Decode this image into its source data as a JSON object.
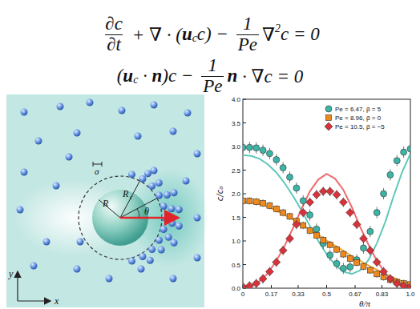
{
  "equations": [
    [
      {
        "frac": [
          "∂c",
          "∂t"
        ]
      },
      {
        "text": " + ∇ · ("
      },
      {
        "bold": "u"
      },
      {
        "sub": "c"
      },
      {
        "text": "c) − "
      },
      {
        "frac": [
          "1",
          "Pe"
        ]
      },
      {
        "text": "∇"
      },
      {
        "sup": "2"
      },
      {
        "text": "c = 0"
      }
    ],
    [
      {
        "text": "("
      },
      {
        "bold": "u"
      },
      {
        "sub": "c"
      },
      {
        "text": " · "
      },
      {
        "bold": "n"
      },
      {
        "text": ")c − "
      },
      {
        "frac": [
          "1",
          "Pe"
        ]
      },
      {
        "bold": "n"
      },
      {
        "text": " · ∇c = 0"
      }
    ]
  ],
  "diagram": {
    "labels": {
      "sigma": "σ",
      "radius": "R",
      "capture_radius": "R",
      "capture_sub": "c",
      "angle": "θ",
      "y_axis": "y",
      "x_axis": "x"
    }
  },
  "chart_data": {
    "type": "scatter",
    "x_label": "θ/π",
    "y_label": "c/c₀",
    "xlim": [
      0,
      1
    ],
    "ylim": [
      0,
      4
    ],
    "xticks": [
      0,
      0.17,
      0.33,
      0.5,
      0.67,
      0.83,
      {
        "value": 1,
        "label": "1.0"
      }
    ],
    "yticks": [
      {
        "value": 0,
        "label": "0.0"
      },
      0.5,
      {
        "value": 1,
        "label": "1.0"
      },
      1.5,
      {
        "value": 2,
        "label": "2.0"
      },
      2.5,
      {
        "value": 3,
        "label": "3.0"
      },
      3.5,
      {
        "value": 4,
        "label": "4.0"
      }
    ],
    "grid": false,
    "legend": "upper right",
    "series": [
      {
        "name": "Pe = 6.47, β = 5",
        "type": "scatter",
        "marker": "circle",
        "color": "#3db5a6",
        "x": [
          0,
          0.04,
          0.08,
          0.12,
          0.16,
          0.2,
          0.24,
          0.28,
          0.32,
          0.36,
          0.4,
          0.44,
          0.48,
          0.52,
          0.56,
          0.6,
          0.64,
          0.68,
          0.72,
          0.76,
          0.8,
          0.84,
          0.88,
          0.92,
          0.96,
          1
        ],
        "values": [
          2.98,
          2.98,
          2.97,
          2.92,
          2.85,
          2.72,
          2.55,
          2.35,
          2.12,
          1.85,
          1.55,
          1.25,
          0.95,
          0.7,
          0.52,
          0.42,
          0.45,
          0.6,
          0.85,
          1.2,
          1.6,
          2.0,
          2.4,
          2.7,
          2.88,
          2.95
        ],
        "errors": [
          0.12,
          0.12,
          0.12,
          0.12,
          0.12,
          0.12,
          0.12,
          0.12,
          0.12,
          0.12,
          0.12,
          0.12,
          0.12,
          0.12,
          0.12,
          0.12,
          0.12,
          0.12,
          0.12,
          0.12,
          0.12,
          0.12,
          0.12,
          0.12,
          0.12,
          0.12
        ]
      },
      {
        "name": "Pe = 8.96, β = 0",
        "type": "scatter",
        "marker": "square",
        "color": "#f0891c",
        "x": [
          0,
          0.04,
          0.08,
          0.12,
          0.16,
          0.2,
          0.24,
          0.28,
          0.32,
          0.36,
          0.4,
          0.44,
          0.48,
          0.52,
          0.56,
          0.6,
          0.64,
          0.68,
          0.72,
          0.76,
          0.8,
          0.84,
          0.88,
          0.92,
          0.96,
          1
        ],
        "values": [
          1.85,
          1.85,
          1.83,
          1.8,
          1.75,
          1.68,
          1.6,
          1.52,
          1.42,
          1.33,
          1.22,
          1.12,
          1.02,
          0.92,
          0.82,
          0.72,
          0.63,
          0.54,
          0.46,
          0.38,
          0.3,
          0.24,
          0.18,
          0.13,
          0.1,
          0.08
        ],
        "errors": [
          0.08,
          0.08,
          0.08,
          0.08,
          0.08,
          0.08,
          0.08,
          0.08,
          0.08,
          0.08,
          0.08,
          0.08,
          0.08,
          0.08,
          0.08,
          0.08,
          0.08,
          0.08,
          0.08,
          0.08,
          0.08,
          0.08,
          0.08,
          0.08,
          0.08,
          0.08
        ]
      },
      {
        "name": "Pe = 10.5, β = −5",
        "type": "scatter",
        "marker": "diamond",
        "color": "#d8323a",
        "x": [
          0,
          0.04,
          0.08,
          0.12,
          0.16,
          0.2,
          0.24,
          0.28,
          0.32,
          0.36,
          0.4,
          0.44,
          0.48,
          0.52,
          0.56,
          0.6,
          0.64,
          0.68,
          0.72,
          0.76,
          0.8,
          0.84,
          0.88,
          0.92,
          0.96,
          1
        ],
        "values": [
          0.03,
          0.05,
          0.1,
          0.2,
          0.35,
          0.55,
          0.8,
          1.05,
          1.35,
          1.6,
          1.82,
          1.98,
          2.05,
          2.05,
          1.98,
          1.82,
          1.6,
          1.35,
          1.05,
          0.8,
          0.55,
          0.35,
          0.2,
          0.1,
          0.05,
          0.03
        ],
        "errors": [
          0.1,
          0.1,
          0.1,
          0.1,
          0.1,
          0.1,
          0.1,
          0.1,
          0.1,
          0.1,
          0.1,
          0.1,
          0.1,
          0.1,
          0.1,
          0.1,
          0.1,
          0.1,
          0.1,
          0.1,
          0.1,
          0.1,
          0.1,
          0.1,
          0.1,
          0.1
        ]
      },
      {
        "type": "line",
        "line_style": "solid",
        "color": "#5ec9b9",
        "x": [
          0,
          0.05,
          0.1,
          0.15,
          0.2,
          0.25,
          0.3,
          0.35,
          0.4,
          0.45,
          0.5,
          0.55,
          0.6,
          0.65,
          0.7,
          0.75,
          0.8,
          0.85,
          0.9,
          0.95,
          1
        ],
        "values": [
          2.82,
          2.8,
          2.74,
          2.62,
          2.45,
          2.22,
          1.95,
          1.65,
          1.32,
          1.0,
          0.72,
          0.5,
          0.35,
          0.3,
          0.38,
          0.6,
          0.95,
          1.4,
          1.95,
          2.45,
          2.85
        ]
      },
      {
        "type": "line",
        "line_style": "solid",
        "color": "#f5a631",
        "x": [
          0,
          0.05,
          0.1,
          0.15,
          0.2,
          0.25,
          0.3,
          0.35,
          0.4,
          0.45,
          0.5,
          0.55,
          0.6,
          0.65,
          0.7,
          0.75,
          0.8,
          0.85,
          0.9,
          0.95,
          1
        ],
        "values": [
          1.82,
          1.81,
          1.78,
          1.72,
          1.64,
          1.55,
          1.45,
          1.35,
          1.24,
          1.13,
          1.01,
          0.9,
          0.79,
          0.68,
          0.58,
          0.48,
          0.39,
          0.3,
          0.22,
          0.15,
          0.1
        ]
      },
      {
        "type": "line",
        "line_style": "solid",
        "color": "#f06b6e",
        "x": [
          0,
          0.05,
          0.1,
          0.15,
          0.2,
          0.25,
          0.3,
          0.35,
          0.4,
          0.45,
          0.5,
          0.55,
          0.6,
          0.65,
          0.7,
          0.75,
          0.8,
          0.85,
          0.9,
          0.95,
          1
        ],
        "values": [
          0.02,
          0.05,
          0.15,
          0.32,
          0.58,
          0.9,
          1.28,
          1.68,
          2.05,
          2.3,
          2.42,
          2.32,
          2.08,
          1.72,
          1.3,
          0.92,
          0.58,
          0.32,
          0.15,
          0.05,
          0.02
        ]
      }
    ]
  }
}
